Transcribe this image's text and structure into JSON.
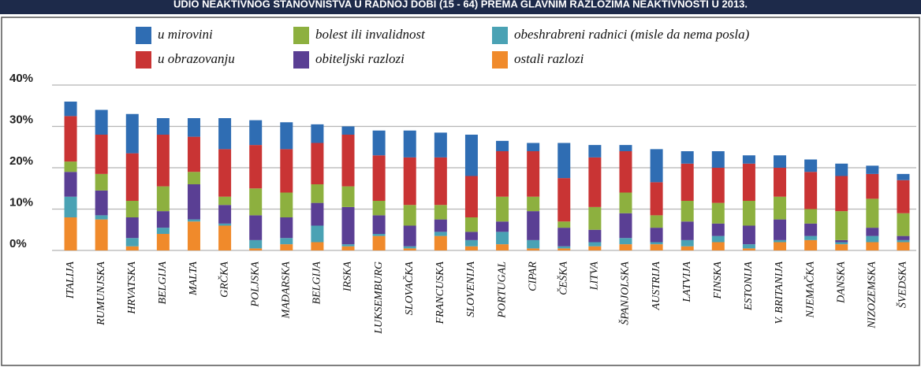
{
  "chart_data": {
    "type": "stacked_bar",
    "title": "UDIO NEAKTIVNOG STANOVNIŠTVA U RADNOJ DOBI (15 - 64) PREMA GLAVNIM RAZLOZIMA NEAKTIVNOSTI U 2013.",
    "categories": [
      "ITALIJA",
      "RUMUNJSKA",
      "HRVATSKA",
      "BELGIJA",
      "MALTA",
      "GRČKA",
      "POLJSKA",
      "MAĐARSKA",
      "BELGIJA",
      "IRSKA",
      "LUKSEMBURG",
      "SLOVAČKA",
      "FRANCUSKA",
      "SLOVENIJA",
      "PORTUGAL",
      "CIPAR",
      "ČEŠKA",
      "LITVA",
      "ŠPANJOLSKA",
      "AUSTRIJA",
      "LATVIJA",
      "FINSKA",
      "ESTONIJA",
      "V. BRITANIJA",
      "NJEMAČKA",
      "DANSKA",
      "NIZOZEMSKA",
      "ŠVEDSKA"
    ],
    "series": [
      {
        "name": "u mirovini",
        "color": "#2f6db3",
        "values": [
          3.5,
          6,
          9.5,
          4,
          4.5,
          7.5,
          6,
          6.5,
          4.5,
          2,
          6,
          6.5,
          6,
          10,
          2.5,
          2,
          8.5,
          3,
          1.5,
          8,
          3,
          4,
          2,
          3,
          3,
          3,
          2,
          1.5
        ]
      },
      {
        "name": "u obrazovanju",
        "color": "#c93434",
        "values": [
          11,
          9.5,
          11.5,
          12.5,
          8.5,
          11.5,
          10.5,
          10.5,
          10,
          12.5,
          11,
          11.5,
          11.5,
          10,
          11,
          11,
          10.5,
          12,
          10,
          8,
          9,
          8.5,
          9,
          7,
          9,
          8.5,
          6,
          8
        ]
      },
      {
        "name": "bolest ili invalidnost",
        "color": "#8db03f",
        "values": [
          2.5,
          4,
          4,
          6,
          3,
          2,
          6.5,
          6,
          4.5,
          5,
          3.5,
          5,
          3.5,
          3.5,
          6,
          3.5,
          1.5,
          5.5,
          5,
          3,
          5,
          5,
          6,
          5.5,
          3.5,
          7,
          7,
          5.5
        ]
      },
      {
        "name": "obiteljski razlozi",
        "color": "#5a3f94",
        "values": [
          6,
          6,
          5,
          4,
          8.5,
          4.5,
          6,
          5,
          5.5,
          9,
          4.5,
          5,
          3,
          2,
          2.5,
          7,
          4.5,
          3,
          6,
          3.5,
          4.5,
          3,
          4.5,
          5,
          3,
          0.5,
          2,
          1
        ]
      },
      {
        "name": "obeshrabreni radnici (misle da nema posla)",
        "color": "#4aa2b4",
        "values": [
          5,
          1,
          2,
          1.5,
          0.5,
          0.5,
          2,
          1.5,
          4,
          0.5,
          0.5,
          0.5,
          1,
          1.5,
          3,
          2,
          0.5,
          1,
          1.5,
          0.5,
          1.5,
          1.5,
          1,
          0.5,
          1,
          0.5,
          1.5,
          0.5
        ]
      },
      {
        "name": "ostali razlozi",
        "color": "#f08a2b",
        "values": [
          8,
          7.5,
          1,
          4,
          7,
          6,
          0.5,
          1.5,
          2,
          1,
          3.5,
          0.5,
          3.5,
          1,
          1.5,
          0.5,
          0.5,
          1,
          1.5,
          1.5,
          1,
          2,
          0.5,
          2,
          2.5,
          1.5,
          2,
          2
        ]
      }
    ],
    "ylim": [
      0,
      40
    ],
    "yticks": [
      {
        "value": 0,
        "label": "0%"
      },
      {
        "value": 10,
        "label": "10%"
      },
      {
        "value": 20,
        "label": "20%"
      },
      {
        "value": 30,
        "label": "30%"
      },
      {
        "value": 40,
        "label": "40%"
      }
    ],
    "grid": true
  }
}
